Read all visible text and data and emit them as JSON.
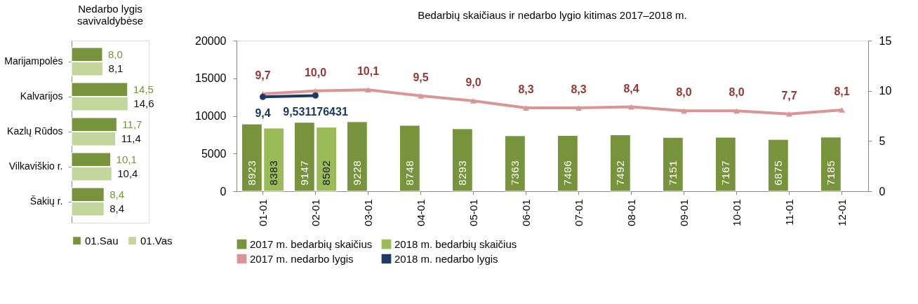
{
  "chart_data": [
    {
      "type": "bar",
      "orientation": "horizontal",
      "title": "Nedarbo lygis\nsavivaldybėse",
      "categories": [
        "Marijampolės",
        "Kalvarijos",
        "Kazlų Rūdos",
        "Vilkaviškio r.",
        "Šakių r."
      ],
      "series": [
        {
          "name": "01.Sau",
          "color": "#77933c",
          "values": [
            8.0,
            14.5,
            11.7,
            10.1,
            8.4
          ],
          "value_labels": [
            "8,0",
            "14,5",
            "11,7",
            "10,1",
            "8,4"
          ]
        },
        {
          "name": "01.Vas",
          "color": "#c3d69b",
          "values": [
            8.1,
            14.6,
            11.4,
            10.4,
            8.4
          ],
          "value_labels": [
            "8,1",
            "14,6",
            "11,4",
            "10,4",
            "8,4"
          ]
        }
      ],
      "xlim": [
        0,
        20
      ],
      "tick_labels": "y",
      "legend": "bottom"
    },
    {
      "type": "bar",
      "title": "Bedarbių skaičiaus ir nedarbo lygio kitimas 2017–2018 m.",
      "categories": [
        "01-01",
        "02-01",
        "03-01",
        "04-01",
        "05-01",
        "06-01",
        "07-01",
        "08-01",
        "09-01",
        "10-01",
        "11-01",
        "12-01"
      ],
      "series": [
        {
          "name": "2017 m. bedarbių skaičius",
          "color": "#77933c",
          "values": [
            8923,
            9147,
            9228,
            8748,
            8293,
            7363,
            7406,
            7492,
            7151,
            7167,
            6875,
            7185
          ]
        },
        {
          "name": "2018 m. bedarbių skaičius",
          "color": "#9bbb59",
          "values": [
            8383,
            8502,
            null,
            null,
            null,
            null,
            null,
            null,
            null,
            null,
            null,
            null
          ]
        },
        {
          "name": "2017 m. nedarbo lygis",
          "type": "line",
          "axis": "y2",
          "marker": "triangle",
          "color": "#d99694",
          "values": [
            9.7,
            10.0,
            10.1,
            9.5,
            9.0,
            8.3,
            8.3,
            8.4,
            8.0,
            8.0,
            7.7,
            8.1
          ],
          "value_labels": [
            "9,7",
            "10,0",
            "10,1",
            "9,5",
            "9,0",
            "8,3",
            "8,3",
            "8,4",
            "8,0",
            "8,0",
            "7,7",
            "8,1"
          ]
        },
        {
          "name": "2018 m. nedarbo lygis",
          "type": "line",
          "axis": "y2",
          "marker": "circle",
          "color": "#1f3864",
          "values": [
            9.4,
            9.531176431,
            null,
            null,
            null,
            null,
            null,
            null,
            null,
            null,
            null,
            null
          ],
          "value_labels": [
            "9,4",
            "9,531176431",
            null,
            null,
            null,
            null,
            null,
            null,
            null,
            null,
            null,
            null
          ]
        }
      ],
      "data_labels": true,
      "ylim": [
        0,
        20000
      ],
      "yticks": [
        0,
        5000,
        10000,
        15000,
        20000
      ],
      "y2lim": [
        0,
        15
      ],
      "y2ticks": [
        0,
        5,
        10,
        15
      ],
      "legend": "bottom",
      "grid": false
    }
  ]
}
